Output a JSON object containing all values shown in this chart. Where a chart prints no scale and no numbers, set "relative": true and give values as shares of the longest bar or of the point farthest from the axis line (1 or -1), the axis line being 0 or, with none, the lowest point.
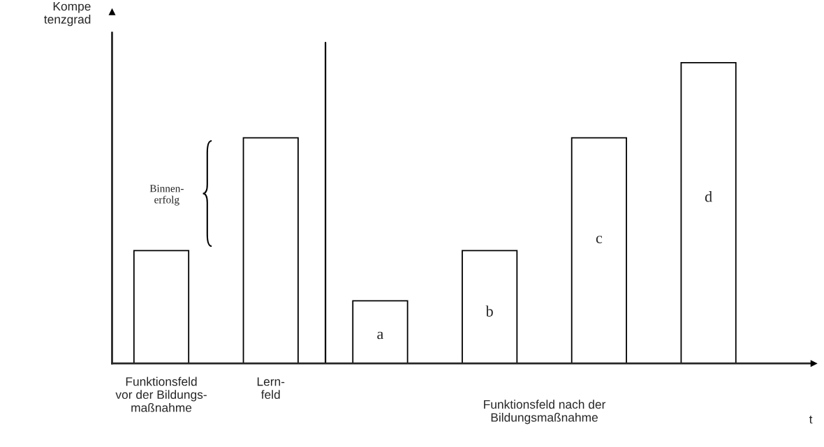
{
  "chart_data": {
    "type": "bar",
    "relative": true,
    "categories": [
      "Funktionsfeld\nvor der Bildungs-\nmaßnahme",
      "Lern-\nfeld",
      null,
      null,
      null,
      null
    ],
    "values": [
      0.375,
      0.75,
      0.208,
      0.375,
      0.75,
      1
    ],
    "color": "#ffffff",
    "ylabel": "Kompe\ntenzgrad",
    "xlabel": "t",
    "annotations": [
      "Binnen-\nerfolg",
      "Funktionsfeld nach der\nBildungsmaßnahme",
      "a",
      "b",
      "c",
      "d"
    ],
    "tick_labels": "x",
    "grid": false
  }
}
